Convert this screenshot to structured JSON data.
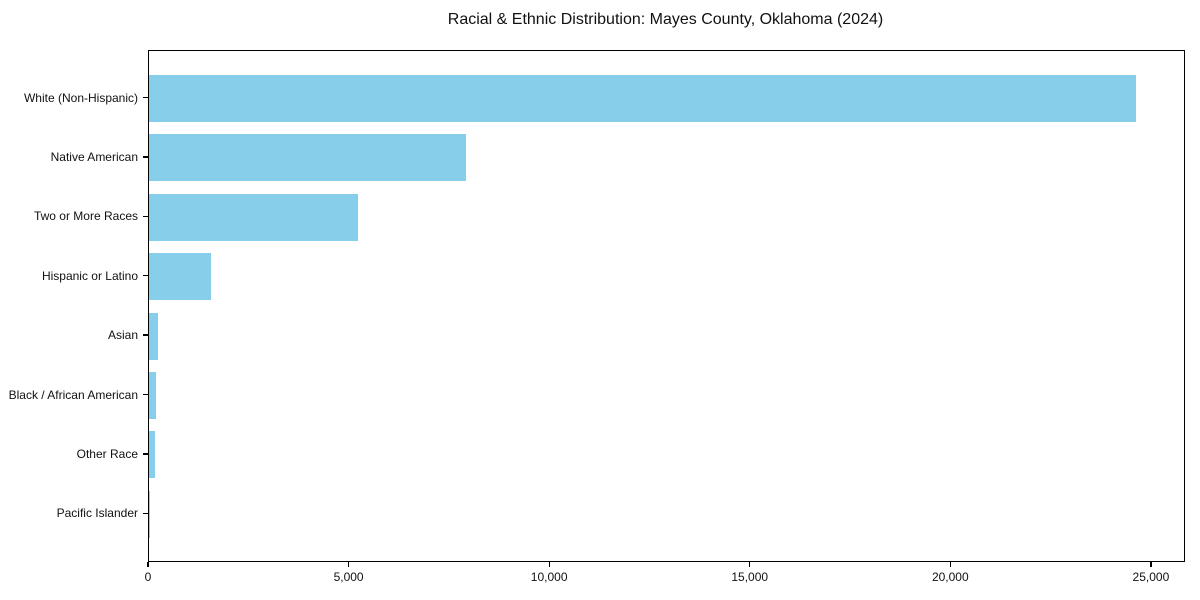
{
  "chart_data": {
    "type": "bar",
    "orientation": "horizontal",
    "title": "Racial & Ethnic Distribution: Mayes County, Oklahoma (2024)",
    "categories": [
      "White (Non-Hispanic)",
      "Native American",
      "Two or More Races",
      "Hispanic or Latino",
      "Asian",
      "Black / African American",
      "Other Race",
      "Pacific Islander"
    ],
    "values": [
      24600,
      7900,
      5200,
      1550,
      220,
      180,
      140,
      20
    ],
    "xlabel": "",
    "ylabel": "",
    "xlim": [
      0,
      25800
    ],
    "xticks": [
      0,
      5000,
      10000,
      15000,
      20000,
      25000
    ],
    "xticklabels": [
      "0",
      "5,000",
      "10,000",
      "15,000",
      "20,000",
      "25,000"
    ],
    "bar_color": "#87CEEB",
    "axis_color": "#000000",
    "text_color": "#111111",
    "grid": false,
    "legend": null
  }
}
